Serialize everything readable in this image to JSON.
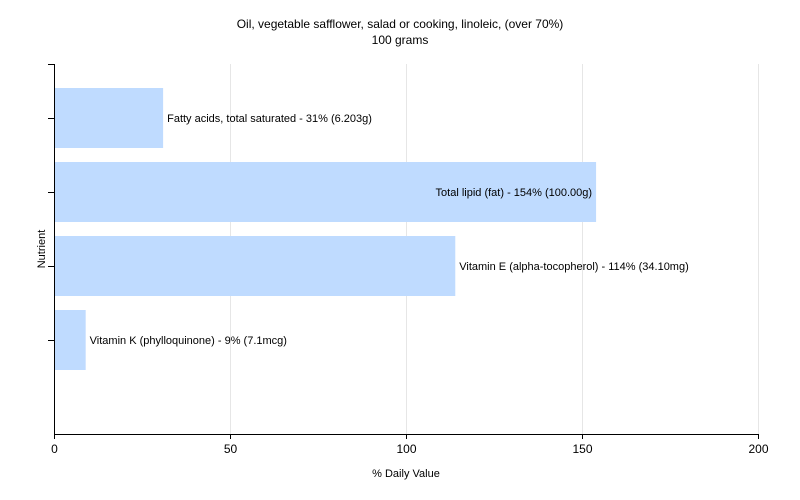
{
  "colors": {
    "bar": "#bfdbff",
    "grid": "#e6e6e6",
    "axis": "#000000",
    "text": "#000000",
    "background": "#ffffff"
  },
  "chart_data": {
    "type": "bar",
    "orientation": "horizontal",
    "title": "Oil, vegetable safflower, salad or cooking, linoleic, (over 70%)",
    "subtitle": "100 grams",
    "xlabel": "% Daily Value",
    "ylabel": "Nutrient",
    "xlim": [
      0,
      200
    ],
    "x_ticks": [
      0,
      50,
      100,
      150,
      200
    ],
    "grid": true,
    "legend": "none",
    "categories": [
      "Fatty acids, total saturated",
      "Total lipid (fat)",
      "Vitamin E (alpha-tocopherol)",
      "Vitamin K (phylloquinone)"
    ],
    "values": [
      31,
      154,
      114,
      9
    ],
    "data_labels": [
      "Fatty acids, total saturated - 31% (6.203g)",
      "Total lipid (fat) - 154% (100.00g)",
      "Vitamin E (alpha-tocopherol) - 114% (34.10mg)",
      "Vitamin K (phylloquinone) - 9% (7.1mcg)"
    ]
  }
}
